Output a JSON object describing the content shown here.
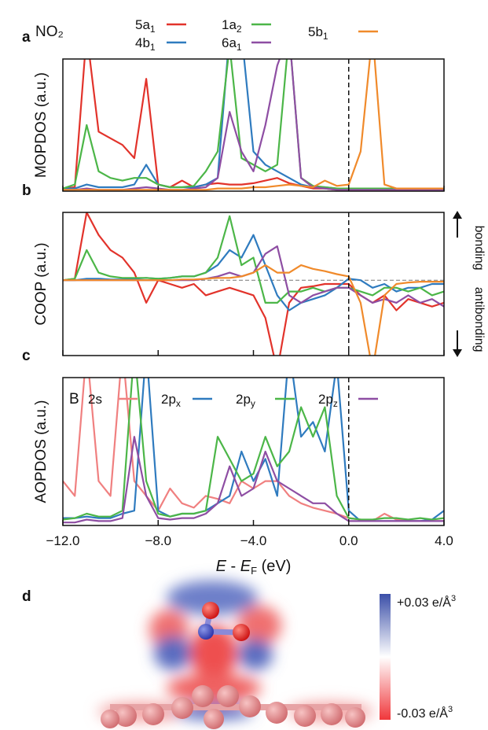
{
  "chart_data": [
    {
      "type": "line",
      "label": "a",
      "ylabel": "MOPDOS (a.u.)",
      "legend_title": "NO₂",
      "x": [
        -12,
        -11.5,
        -11,
        -10.5,
        -10,
        -9.5,
        -9,
        -8.5,
        -8,
        -7.5,
        -7,
        -6.5,
        -6,
        -5.5,
        -5,
        -4.5,
        -4,
        -3.5,
        -3,
        -2.5,
        -2,
        -1.5,
        -1,
        -0.5,
        0,
        0.5,
        1,
        1.5,
        2,
        2.5,
        3,
        3.5,
        4
      ],
      "xlim": [
        -12,
        4
      ],
      "xticks": [
        -12,
        -8,
        -4,
        0,
        4
      ],
      "ylim": [
        0,
        1
      ],
      "vline": 0,
      "series": [
        {
          "name": "5a",
          "sub": "1",
          "color": "#e2332b",
          "values": [
            0.02,
            0.03,
            1.2,
            0.45,
            0.4,
            0.35,
            0.25,
            0.85,
            0.05,
            0.03,
            0.08,
            0.03,
            0.05,
            0.06,
            0.05,
            0.05,
            0.06,
            0.08,
            0.1,
            0.06,
            0.04,
            0.02,
            0.02,
            0.01,
            0.01,
            0.01,
            0.01,
            0.01,
            0.01,
            0.01,
            0.01,
            0.01,
            0.01
          ]
        },
        {
          "name": "4b",
          "sub": "1",
          "color": "#2f7bbf",
          "values": [
            0.02,
            0.02,
            0.05,
            0.03,
            0.03,
            0.03,
            0.05,
            0.2,
            0.05,
            0.03,
            0.03,
            0.03,
            0.05,
            0.1,
            1.2,
            1.2,
            0.3,
            0.2,
            0.15,
            0.1,
            0.05,
            0.03,
            0.03,
            0.02,
            0.02,
            0.02,
            0.02,
            0.02,
            0.02,
            0.02,
            0.02,
            0.02,
            0.02
          ]
        },
        {
          "name": "1a",
          "sub": "2",
          "color": "#4cb648",
          "values": [
            0.02,
            0.05,
            0.5,
            0.15,
            0.1,
            0.08,
            0.1,
            0.1,
            0.05,
            0.03,
            0.03,
            0.04,
            0.15,
            0.3,
            1.1,
            0.25,
            0.2,
            0.15,
            0.2,
            1.2,
            0.1,
            0.04,
            0.03,
            0.02,
            0.02,
            0.02,
            0.02,
            0.02,
            0.02,
            0.02,
            0.02,
            0.02,
            0.02
          ]
        },
        {
          "name": "6a",
          "sub": "1",
          "color": "#8e4ea3",
          "values": [
            0.01,
            0.01,
            0.02,
            0.01,
            0.01,
            0.01,
            0.02,
            0.03,
            0.02,
            0.01,
            0.01,
            0.02,
            0.03,
            0.1,
            0.6,
            0.3,
            0.15,
            0.5,
            0.95,
            1.2,
            0.1,
            0.03,
            0.02,
            0.01,
            0.01,
            0.01,
            0.01,
            0.01,
            0.01,
            0.01,
            0.01,
            0.01,
            0.01
          ]
        },
        {
          "name": "5b",
          "sub": "1",
          "color": "#f08a2b",
          "values": [
            0.01,
            0.01,
            0.01,
            0.01,
            0.01,
            0.01,
            0.01,
            0.01,
            0.01,
            0.01,
            0.01,
            0.01,
            0.01,
            0.02,
            0.02,
            0.02,
            0.03,
            0.03,
            0.04,
            0.05,
            0.04,
            0.03,
            0.08,
            0.04,
            0.05,
            0.3,
            1.2,
            0.05,
            0.02,
            0.02,
            0.02,
            0.02,
            0.02
          ]
        }
      ]
    },
    {
      "type": "line",
      "label": "b",
      "ylabel": "COOP (a.u.)",
      "annotations": [
        "bonding",
        "antibonding"
      ],
      "x": [
        -12,
        -11.5,
        -11,
        -10.5,
        -10,
        -9.5,
        -9,
        -8.5,
        -8,
        -7.5,
        -7,
        -6.5,
        -6,
        -5.5,
        -5,
        -4.5,
        -4,
        -3.5,
        -3,
        -2.5,
        -2,
        -1.5,
        -1,
        -0.5,
        0,
        0.5,
        1,
        1.5,
        2,
        2.5,
        3,
        3.5,
        4
      ],
      "xlim": [
        -12,
        4
      ],
      "xticks": [
        -12,
        -8,
        -4,
        0,
        4
      ],
      "ylim": [
        -1,
        0.9
      ],
      "vline": 0,
      "hline": 0,
      "series": [
        {
          "color": "#e2332b",
          "values": [
            0,
            0.02,
            0.9,
            0.6,
            0.4,
            0.3,
            0.1,
            -0.3,
            0,
            -0.05,
            -0.1,
            -0.05,
            -0.2,
            -0.15,
            -0.1,
            -0.15,
            -0.2,
            -0.5,
            -1.2,
            -0.3,
            -0.1,
            -0.08,
            -0.05,
            -0.05,
            -0.05,
            -0.2,
            -0.3,
            -0.2,
            -0.4,
            -0.25,
            -0.3,
            -0.35,
            -0.3
          ]
        },
        {
          "color": "#2f7bbf",
          "values": [
            0,
            0,
            0.02,
            0.02,
            0.01,
            0.01,
            0.02,
            0.03,
            0.02,
            0.03,
            0.05,
            0.05,
            0.1,
            0.2,
            0.4,
            0.3,
            0.6,
            0.2,
            -0.2,
            -0.4,
            -0.3,
            -0.25,
            -0.2,
            -0.1,
            0.02,
            0,
            -0.1,
            -0.05,
            -0.15,
            -0.1,
            -0.1,
            -0.05,
            -0.05
          ]
        },
        {
          "color": "#4cb648",
          "values": [
            0,
            0.02,
            0.4,
            0.1,
            0.05,
            0.03,
            0.03,
            0.03,
            0.02,
            0.03,
            0.05,
            0.05,
            0.1,
            0.3,
            0.85,
            0.2,
            0.3,
            -0.3,
            -0.3,
            -0.15,
            -0.15,
            -0.1,
            -0.15,
            -0.1,
            -0.1,
            -0.15,
            -0.2,
            -0.1,
            -0.1,
            -0.15,
            -0.1,
            -0.2,
            -0.15
          ]
        },
        {
          "color": "#8e4ea3",
          "values": [
            0,
            0,
            0,
            0,
            0,
            0,
            0,
            0,
            0,
            0,
            0,
            0,
            0.02,
            0.05,
            0.1,
            0.05,
            0.1,
            0.35,
            0.45,
            -0.2,
            -0.3,
            -0.2,
            -0.15,
            -0.1,
            -0.1,
            -0.2,
            -0.3,
            -0.25,
            -0.3,
            -0.2,
            -0.3,
            -0.25,
            -0.35
          ]
        },
        {
          "color": "#f08a2b",
          "values": [
            0,
            0,
            0,
            0,
            0,
            0,
            0,
            0,
            0,
            0,
            0.01,
            0.01,
            0.02,
            0.03,
            0.03,
            0.05,
            0.1,
            0.2,
            0.1,
            0.1,
            0.2,
            0.15,
            0.12,
            0.08,
            0.05,
            -0.3,
            -1.2,
            -0.2,
            -0.05,
            -0.03,
            -0.02,
            -0.02,
            -0.02
          ]
        }
      ]
    },
    {
      "type": "line",
      "label": "c",
      "ylabel": "AOPDOS (a.u.)",
      "legend_title": "B",
      "xlabel": [
        "E",
        " - ",
        "E",
        "F",
        " (eV)"
      ],
      "x": [
        -12,
        -11.5,
        -11,
        -10.5,
        -10,
        -9.5,
        -9,
        -8.5,
        -8,
        -7.5,
        -7,
        -6.5,
        -6,
        -5.5,
        -5,
        -4.5,
        -4,
        -3.5,
        -3,
        -2.5,
        -2,
        -1.5,
        -1,
        -0.5,
        0,
        0.5,
        1,
        1.5,
        2,
        2.5,
        3,
        3.5,
        4
      ],
      "xlim": [
        -12,
        4
      ],
      "xticks": [
        {
          "value": -12,
          "label": "−12.0"
        },
        {
          "value": -8,
          "label": "−8.0"
        },
        {
          "value": -4,
          "label": "−4.0"
        },
        {
          "value": 0,
          "label": "0.0"
        },
        {
          "value": 4,
          "label": "4.0"
        }
      ],
      "ylim": [
        0,
        1
      ],
      "vline": 0,
      "series": [
        {
          "name": "2s",
          "color": "#f08080",
          "values": [
            0.3,
            0.2,
            1.2,
            0.3,
            0.2,
            1.2,
            0.3,
            0.2,
            0.1,
            0.25,
            0.15,
            0.12,
            0.2,
            0.18,
            0.15,
            0.3,
            0.25,
            0.3,
            0.3,
            0.2,
            0.15,
            0.12,
            0.1,
            0.08,
            0.05,
            0.04,
            0.03,
            0.08,
            0.04,
            0.03,
            0.03,
            0.03,
            0.03
          ]
        },
        {
          "name": "2p",
          "sub": "x",
          "color": "#2f7bbf",
          "values": [
            0.05,
            0.05,
            0.06,
            0.05,
            0.05,
            0.08,
            0.1,
            1.2,
            0.1,
            0.06,
            0.08,
            0.08,
            0.1,
            0.15,
            0.2,
            0.5,
            0.3,
            0.45,
            0.2,
            1.2,
            0.6,
            0.7,
            0.5,
            1.1,
            0.1,
            0.03,
            0.03,
            0.03,
            0.03,
            0.03,
            0.03,
            0.04,
            0.1
          ]
        },
        {
          "name": "2p",
          "sub": "y",
          "color": "#4cb648",
          "values": [
            0.04,
            0.05,
            0.08,
            0.06,
            0.06,
            0.1,
            1.2,
            0.3,
            0.08,
            0.06,
            0.08,
            0.08,
            0.1,
            0.6,
            0.45,
            0.3,
            0.35,
            0.6,
            0.4,
            0.5,
            0.8,
            0.6,
            0.8,
            0.2,
            0.05,
            0.04,
            0.04,
            0.05,
            0.05,
            0.04,
            0.05,
            0.04,
            0.05
          ]
        },
        {
          "name": "2p",
          "sub": "z",
          "color": "#8e4ea3",
          "values": [
            0.02,
            0.02,
            0.04,
            0.03,
            0.03,
            0.05,
            0.6,
            0.2,
            0.05,
            0.04,
            0.05,
            0.05,
            0.08,
            0.15,
            0.4,
            0.2,
            0.25,
            0.5,
            0.3,
            0.25,
            0.2,
            0.15,
            0.15,
            0.08,
            0.03,
            0.03,
            0.03,
            0.03,
            0.03,
            0.03,
            0.03,
            0.03,
            0.03
          ]
        }
      ]
    }
  ],
  "panel_d": {
    "label": "d",
    "colorbar": {
      "top": "+0.03 e/Å",
      "bottom": "-0.03 e/Å",
      "power": "3"
    }
  }
}
